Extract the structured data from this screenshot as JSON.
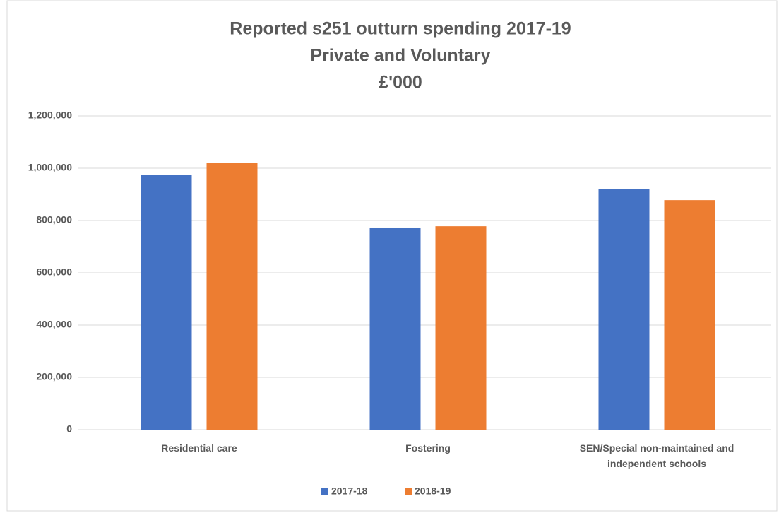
{
  "chart_data": {
    "type": "bar",
    "title": [
      "Reported s251 outturn spending 2017-19",
      "Private and Voluntary",
      "£'000"
    ],
    "categories": [
      "Residential care",
      "Fostering",
      "SEN/Special non-maintained and independent schools"
    ],
    "series": [
      {
        "name": "2017-18",
        "color": "#4472c4",
        "values": [
          975000,
          773000,
          919000
        ]
      },
      {
        "name": "2018-19",
        "color": "#ed7d31",
        "values": [
          1019000,
          778000,
          878000
        ]
      }
    ],
    "ylim": [
      0,
      1200000
    ],
    "yticks": [
      0,
      {
        "value": 200000,
        "label": "200,000"
      },
      {
        "value": 400000,
        "label": "400,000"
      },
      {
        "value": 600000,
        "label": "600,000"
      },
      {
        "value": 800000,
        "label": "800,000"
      },
      {
        "value": 1000000,
        "label": "1,000,000"
      },
      {
        "value": 1200000,
        "label": "1,200,000"
      }
    ],
    "grid": true,
    "legend": "bottom"
  }
}
